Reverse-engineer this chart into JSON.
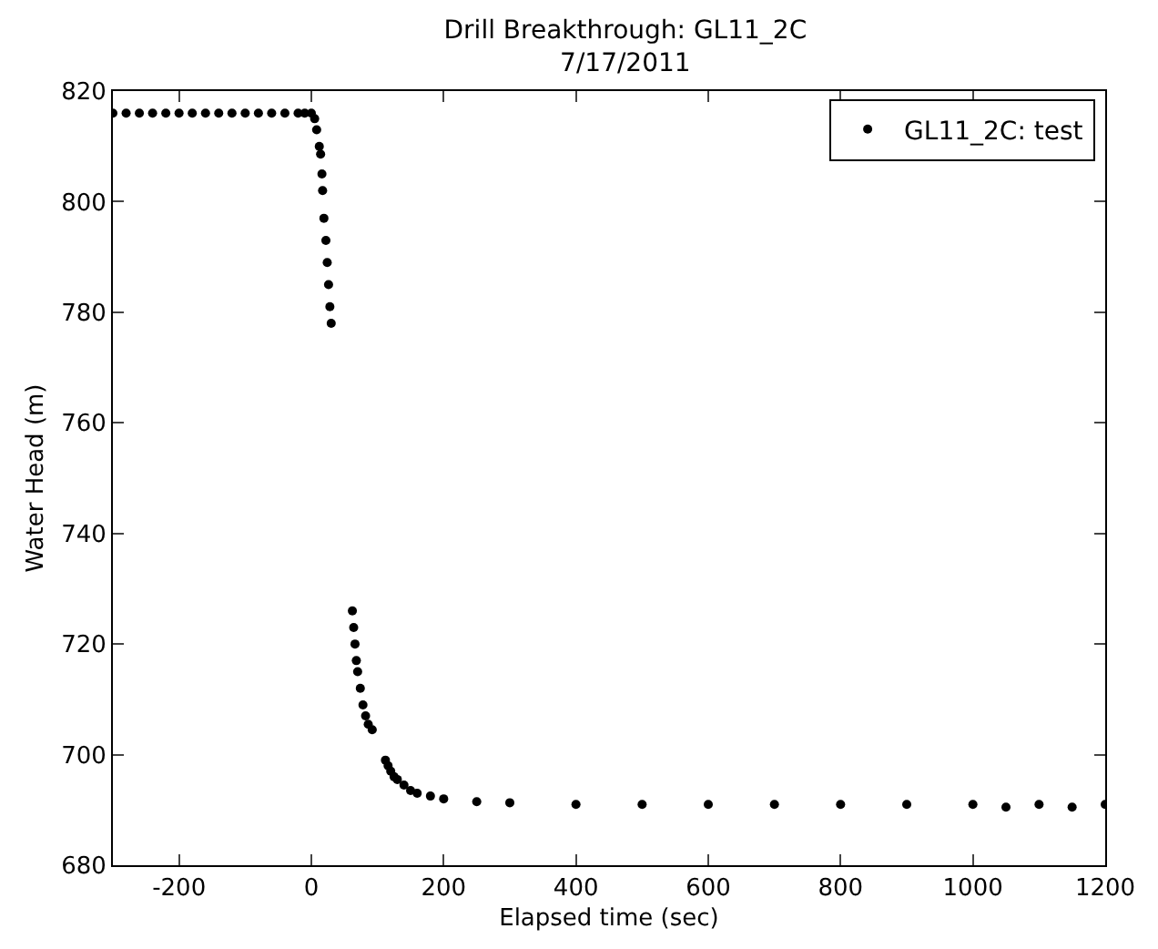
{
  "chart_data": {
    "type": "scatter",
    "title": "Drill Breakthrough: GL11_2C",
    "subtitle": "7/17/2011",
    "xlabel": "Elapsed time (sec)",
    "ylabel": "Water Head (m)",
    "xlim": [
      -300,
      1200
    ],
    "xticks": [
      -200,
      0,
      200,
      400,
      600,
      800,
      1000,
      1200
    ],
    "ylim": [
      680,
      820
    ],
    "yticks": [
      680,
      700,
      720,
      740,
      760,
      780,
      800,
      820
    ],
    "legend": "top right",
    "marker": "circle",
    "series": [
      {
        "name": "GL11_2C: test",
        "color": "#000000",
        "x": [
          -300,
          -280,
          -260,
          -240,
          -220,
          -200,
          -180,
          -160,
          -140,
          -120,
          -100,
          -80,
          -60,
          -40,
          -20,
          -10,
          0,
          5,
          8,
          12,
          14,
          16,
          17,
          19,
          22,
          24,
          26,
          28,
          30,
          62,
          64,
          66,
          68,
          70,
          74,
          78,
          82,
          86,
          92,
          112,
          116,
          120,
          125,
          130,
          140,
          150,
          160,
          180,
          200,
          250,
          300,
          400,
          500,
          600,
          700,
          800,
          900,
          1000,
          1050,
          1100,
          1150,
          1200
        ],
        "values": [
          816,
          816,
          816,
          816,
          816,
          816,
          816,
          816,
          816,
          816,
          816,
          816,
          816,
          816,
          816,
          816,
          816,
          815,
          813,
          810,
          808.6,
          805,
          802,
          797,
          793,
          789,
          785,
          781,
          778,
          726,
          723,
          720,
          717,
          715,
          712,
          709,
          707,
          705.5,
          704.5,
          699,
          698,
          697,
          696,
          695.5,
          694.5,
          693.5,
          693,
          692.5,
          692,
          691.5,
          691.3,
          691,
          691,
          691,
          691,
          691,
          691,
          691,
          690.5,
          691,
          690.5,
          691
        ]
      }
    ]
  }
}
